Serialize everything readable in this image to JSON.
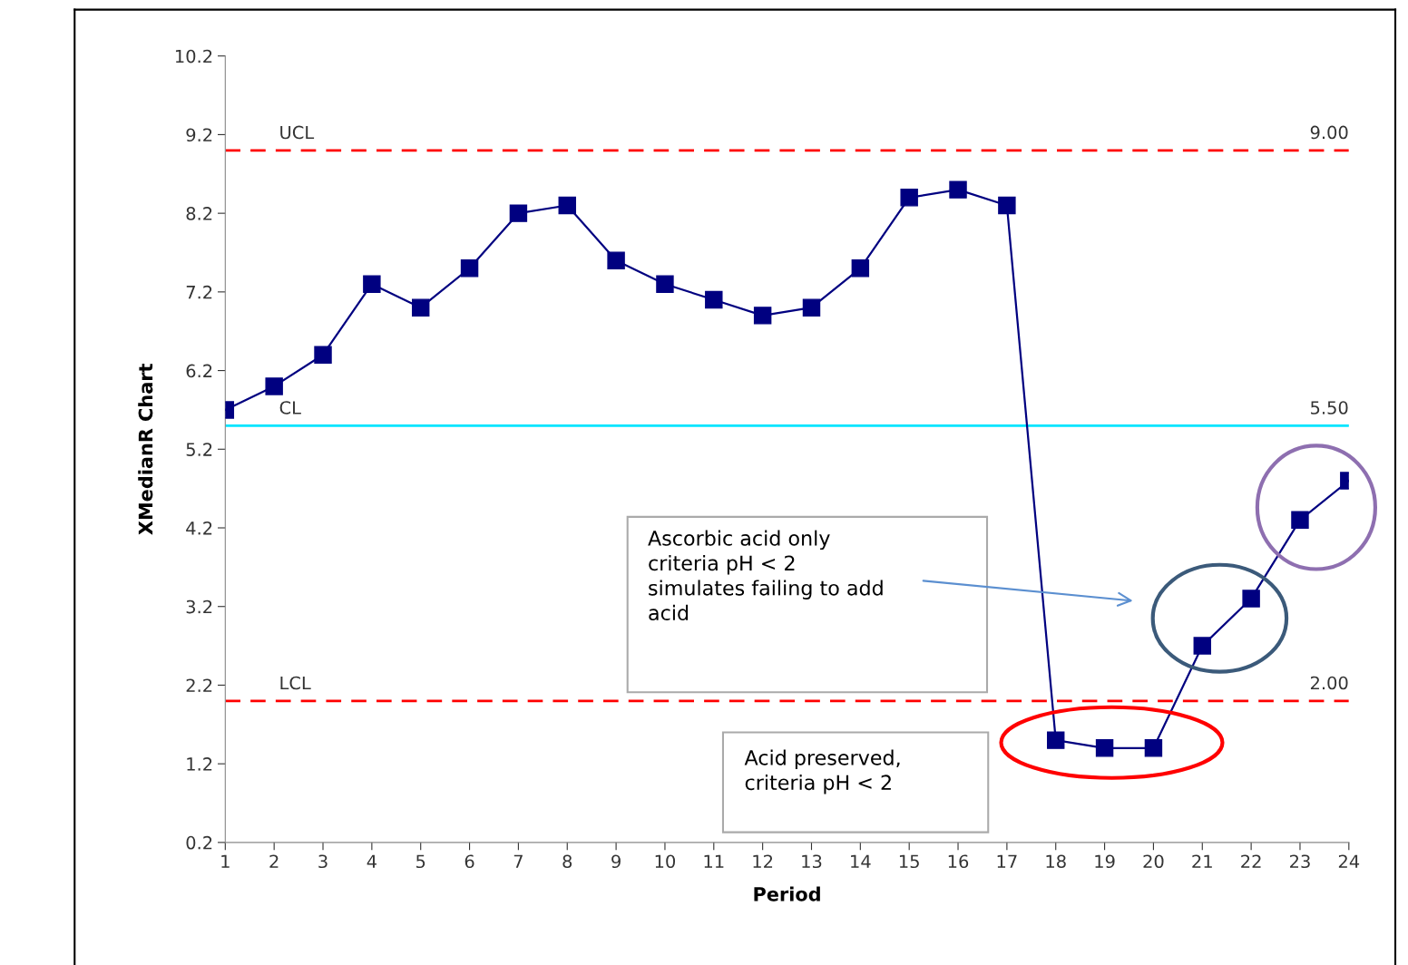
{
  "chart_data": {
    "type": "line",
    "xlabel": "Period",
    "ylabel": "XMedianR Chart",
    "categories": [
      "1",
      "2",
      "3",
      "4",
      "5",
      "6",
      "7",
      "8",
      "9",
      "10",
      "11",
      "12",
      "13",
      "14",
      "15",
      "16",
      "17",
      "18",
      "19",
      "20",
      "21",
      "22",
      "23",
      "24"
    ],
    "series": [
      {
        "color": "#000080",
        "values": [
          5.7,
          6.0,
          6.4,
          7.3,
          7.0,
          7.5,
          8.2,
          8.3,
          7.6,
          7.3,
          7.1,
          6.9,
          7.0,
          7.5,
          8.4,
          8.5,
          8.3,
          1.5,
          1.4,
          1.4,
          2.7,
          3.3,
          4.3,
          4.8
        ]
      }
    ],
    "marker": "square",
    "line_style": "solid",
    "ylim": [
      0.2,
      10.2
    ],
    "yticks": [
      0.2,
      1.2,
      2.2,
      3.2,
      4.2,
      5.2,
      6.2,
      7.2,
      8.2,
      9.2,
      10.2
    ],
    "ref_lines": [
      {
        "axis": "y",
        "value": 9.0,
        "label": "UCL",
        "color": "#ff0000",
        "line_style": "dashed"
      },
      {
        "axis": "y",
        "value": 5.5,
        "label": "CL",
        "color": "#00e5ff",
        "line_style": "solid"
      },
      {
        "axis": "y",
        "value": 2.0,
        "label": "LCL",
        "color": "#ff0000",
        "line_style": "dashed"
      }
    ],
    "annotations": [
      {
        "text": "9.00",
        "x": "24",
        "y": 9.0
      },
      {
        "text": "5.50",
        "x": "24",
        "y": 5.5
      },
      {
        "text": "2.00",
        "x": "24",
        "y": 2.0
      },
      "Ascorbic acid only\ncriteria pH < 2\nsimulates failing to add\nacid",
      "Acid preserved,\ncriteria pH < 2"
    ],
    "grid": false,
    "legend": false
  }
}
